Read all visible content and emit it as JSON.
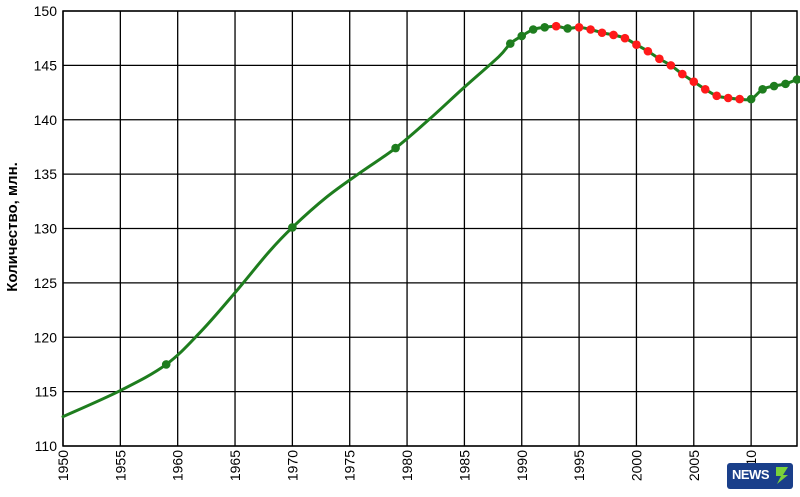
{
  "chart_data": {
    "type": "line",
    "xlabel": "",
    "ylabel": "Количество, млн.",
    "xlim": [
      1950,
      2014
    ],
    "ylim": [
      110,
      150
    ],
    "x_ticks": [
      1950,
      1955,
      1960,
      1965,
      1970,
      1975,
      1980,
      1985,
      1990,
      1995,
      2000,
      2005,
      2010
    ],
    "y_ticks": [
      110,
      115,
      120,
      125,
      130,
      135,
      140,
      145,
      150
    ],
    "x_tick_labels": [
      "1950",
      "1955",
      "1960",
      "1965",
      "1970",
      "1975",
      "1980",
      "1985",
      "1990",
      "1995",
      "2000",
      "2005",
      "2010"
    ],
    "y_tick_labels": [
      "110",
      "115",
      "120",
      "125",
      "130",
      "135",
      "140",
      "145",
      "150"
    ],
    "grid": true,
    "colors": {
      "increase": "#1e7d1e",
      "decrease": "#ff1a1a",
      "grid": "#000000"
    },
    "line": {
      "x": [
        1950,
        1955,
        1959,
        1962,
        1965,
        1968,
        1970,
        1973,
        1976,
        1979,
        1982,
        1985,
        1988,
        1989,
        1990,
        1991,
        1992,
        1993,
        1994,
        1995,
        1996,
        1997,
        1998,
        1999,
        2000,
        2001,
        2002,
        2003,
        2004,
        2005,
        2006,
        2007,
        2008,
        2009,
        2010,
        2011,
        2012,
        2013,
        2014
      ],
      "y": [
        112.7,
        115.1,
        117.5,
        120.5,
        124.1,
        127.9,
        130.1,
        132.9,
        135.2,
        137.4,
        140.1,
        143.0,
        145.8,
        147.0,
        147.7,
        148.3,
        148.5,
        148.6,
        148.4,
        148.5,
        148.3,
        148.0,
        147.8,
        147.5,
        146.9,
        146.3,
        145.6,
        145.0,
        144.2,
        143.5,
        142.8,
        142.2,
        142.0,
        141.9,
        141.9,
        142.8,
        143.1,
        143.3,
        143.7
      ]
    },
    "markers": [
      {
        "x": 1959,
        "y": 117.5,
        "trend": "increase"
      },
      {
        "x": 1970,
        "y": 130.1,
        "trend": "increase"
      },
      {
        "x": 1979,
        "y": 137.4,
        "trend": "increase"
      },
      {
        "x": 1989,
        "y": 147.0,
        "trend": "increase"
      },
      {
        "x": 1990,
        "y": 147.7,
        "trend": "increase"
      },
      {
        "x": 1991,
        "y": 148.3,
        "trend": "increase"
      },
      {
        "x": 1992,
        "y": 148.5,
        "trend": "increase"
      },
      {
        "x": 1993,
        "y": 148.6,
        "trend": "decrease"
      },
      {
        "x": 1994,
        "y": 148.4,
        "trend": "increase"
      },
      {
        "x": 1995,
        "y": 148.5,
        "trend": "decrease"
      },
      {
        "x": 1996,
        "y": 148.3,
        "trend": "decrease"
      },
      {
        "x": 1997,
        "y": 148.0,
        "trend": "decrease"
      },
      {
        "x": 1998,
        "y": 147.8,
        "trend": "decrease"
      },
      {
        "x": 1999,
        "y": 147.5,
        "trend": "decrease"
      },
      {
        "x": 2000,
        "y": 146.9,
        "trend": "decrease"
      },
      {
        "x": 2001,
        "y": 146.3,
        "trend": "decrease"
      },
      {
        "x": 2002,
        "y": 145.6,
        "trend": "decrease"
      },
      {
        "x": 2003,
        "y": 145.0,
        "trend": "decrease"
      },
      {
        "x": 2004,
        "y": 144.2,
        "trend": "decrease"
      },
      {
        "x": 2005,
        "y": 143.5,
        "trend": "decrease"
      },
      {
        "x": 2006,
        "y": 142.8,
        "trend": "decrease"
      },
      {
        "x": 2007,
        "y": 142.2,
        "trend": "decrease"
      },
      {
        "x": 2008,
        "y": 142.0,
        "trend": "decrease"
      },
      {
        "x": 2009,
        "y": 141.9,
        "trend": "decrease"
      },
      {
        "x": 2010,
        "y": 141.9,
        "trend": "increase"
      },
      {
        "x": 2011,
        "y": 142.8,
        "trend": "increase"
      },
      {
        "x": 2012,
        "y": 143.1,
        "trend": "increase"
      },
      {
        "x": 2013,
        "y": 143.3,
        "trend": "increase"
      },
      {
        "x": 2014,
        "y": 143.7,
        "trend": "increase"
      }
    ]
  },
  "watermark": {
    "text": "NEWS"
  }
}
